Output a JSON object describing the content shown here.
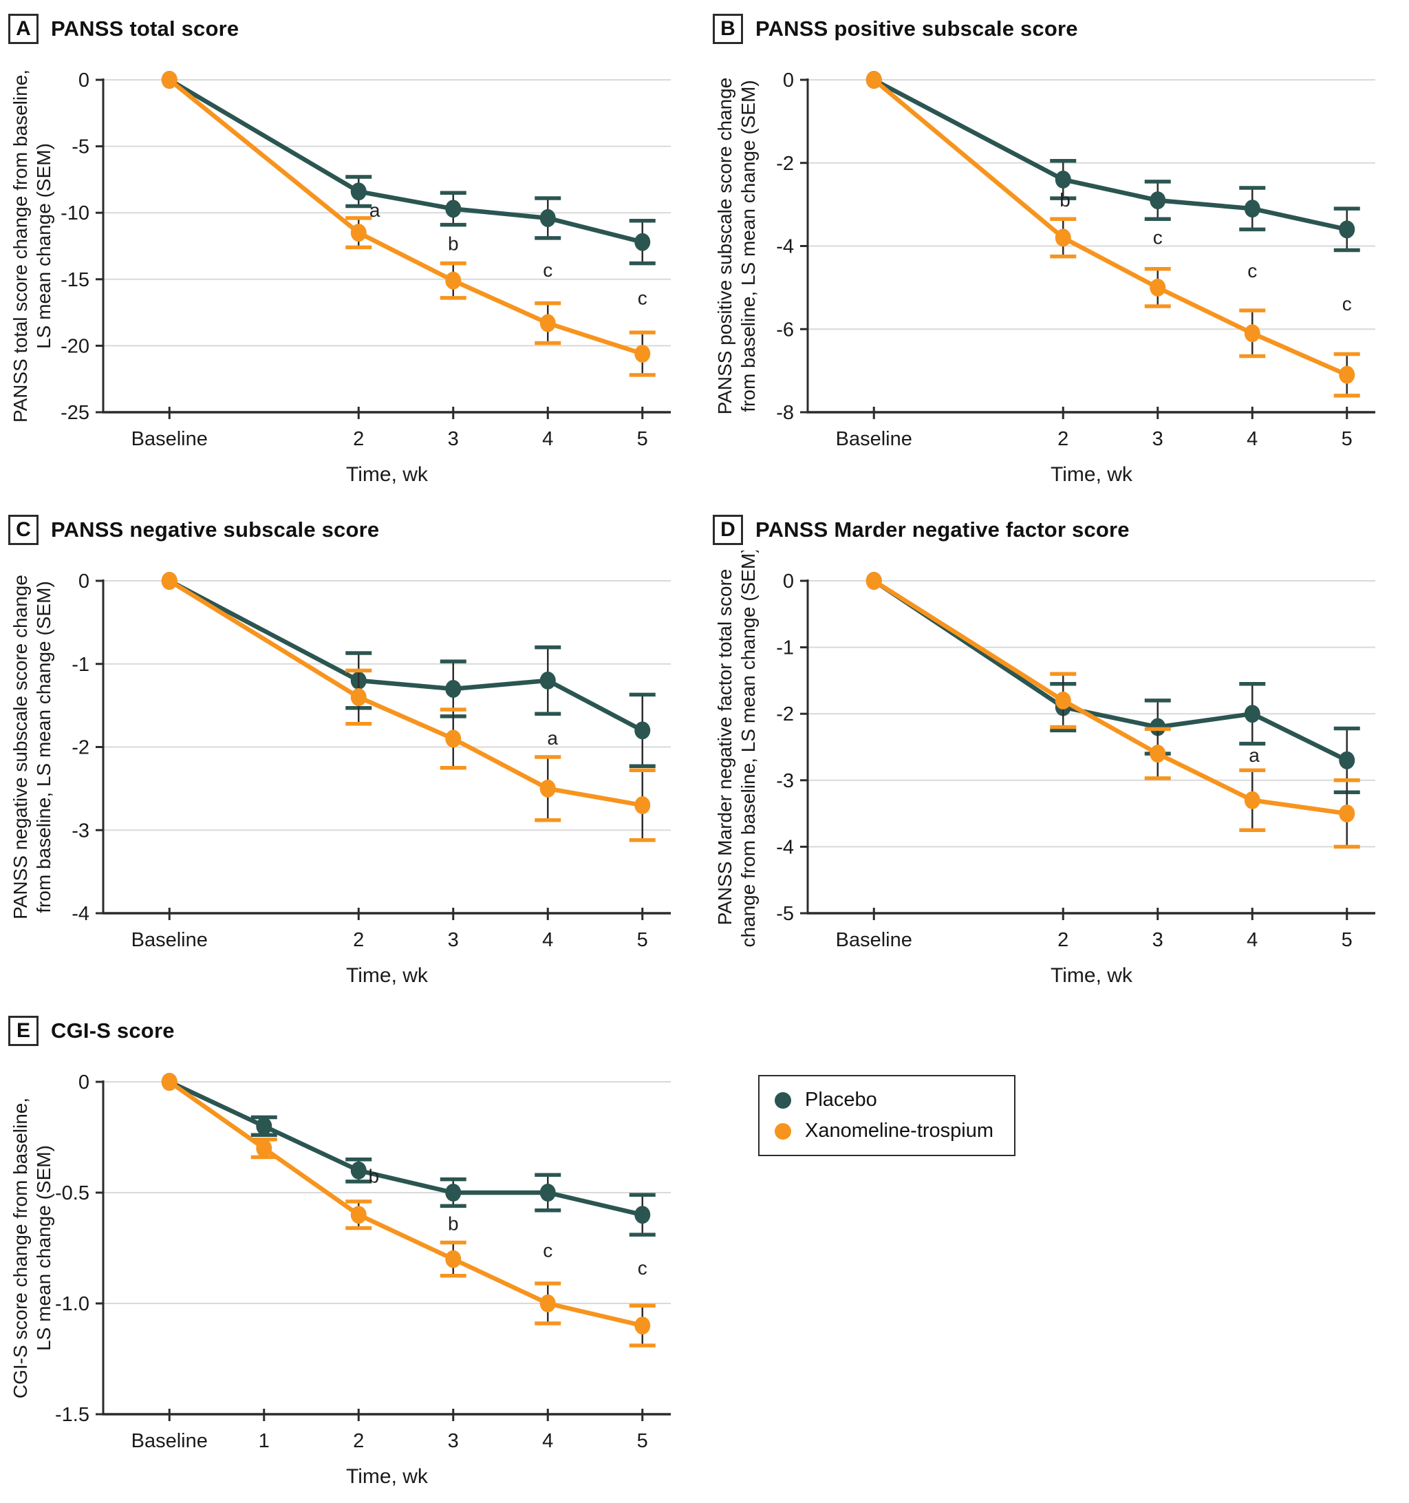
{
  "legend": {
    "items": [
      {
        "label": "Placebo",
        "color": "#2B5551"
      },
      {
        "label": "Xanomeline-trospium",
        "color": "#F7941E"
      }
    ]
  },
  "style": {
    "grid_color": "#D9D9D9",
    "axis_color": "#2B2B2B",
    "text_color": "#1A1A1A",
    "errorbar_stem_color": "#2E2E2E"
  },
  "chart_data": [
    {
      "type": "line",
      "label": "A",
      "title": "PANSS total score",
      "ylabel_lines": [
        "PANSS total score change from baseline,",
        "LS mean change (SEM)"
      ],
      "xlabel": "Time, wk",
      "xlim": [
        -0.7,
        5.3
      ],
      "ylim": [
        -25,
        0
      ],
      "grid": true,
      "yticks": [
        {
          "v": 0,
          "label": "0"
        },
        {
          "v": -5,
          "label": "-5"
        },
        {
          "v": -10,
          "label": "-10"
        },
        {
          "v": -15,
          "label": "-15"
        },
        {
          "v": -20,
          "label": "-20"
        },
        {
          "v": -25,
          "label": "-25"
        }
      ],
      "xticks": [
        {
          "v": 0,
          "label": "Baseline"
        },
        {
          "v": 2,
          "label": "2"
        },
        {
          "v": 3,
          "label": "3"
        },
        {
          "v": 4,
          "label": "4"
        },
        {
          "v": 5,
          "label": "5"
        }
      ],
      "series": [
        {
          "name": "Placebo",
          "color": "#2B5551",
          "x": [
            0,
            2,
            3,
            4,
            5
          ],
          "y": [
            0,
            -8.4,
            -9.7,
            -10.4,
            -12.2
          ],
          "sem": [
            0,
            1.1,
            1.2,
            1.5,
            1.6
          ]
        },
        {
          "name": "Xanomeline-trospium",
          "color": "#F7941E",
          "x": [
            0,
            2,
            3,
            4,
            5
          ],
          "y": [
            0,
            -11.5,
            -15.1,
            -18.3,
            -20.6
          ],
          "sem": [
            0,
            1.1,
            1.3,
            1.5,
            1.6
          ]
        }
      ],
      "annotations": [
        {
          "x": 2.17,
          "y": -10.3,
          "text": "a"
        },
        {
          "x": 3,
          "y": -12.8,
          "text": "b"
        },
        {
          "x": 4,
          "y": -14.8,
          "text": "c"
        },
        {
          "x": 5,
          "y": -16.9,
          "text": "c"
        }
      ]
    },
    {
      "type": "line",
      "label": "B",
      "title": "PANSS positive subscale score",
      "ylabel_lines": [
        "PANSS positive subscale score change",
        "from baseline, LS mean change (SEM)"
      ],
      "xlabel": "Time, wk",
      "xlim": [
        -0.7,
        5.3
      ],
      "ylim": [
        -8,
        0
      ],
      "grid": true,
      "yticks": [
        {
          "v": 0,
          "label": "0"
        },
        {
          "v": -2,
          "label": "-2"
        },
        {
          "v": -4,
          "label": "-4"
        },
        {
          "v": -6,
          "label": "-6"
        },
        {
          "v": -8,
          "label": "-8"
        }
      ],
      "xticks": [
        {
          "v": 0,
          "label": "Baseline"
        },
        {
          "v": 2,
          "label": "2"
        },
        {
          "v": 3,
          "label": "3"
        },
        {
          "v": 4,
          "label": "4"
        },
        {
          "v": 5,
          "label": "5"
        }
      ],
      "series": [
        {
          "name": "Placebo",
          "color": "#2B5551",
          "x": [
            0,
            2,
            3,
            4,
            5
          ],
          "y": [
            0,
            -2.4,
            -2.9,
            -3.1,
            -3.6
          ],
          "sem": [
            0,
            0.45,
            0.45,
            0.5,
            0.5
          ]
        },
        {
          "name": "Xanomeline-trospium",
          "color": "#F7941E",
          "x": [
            0,
            2,
            3,
            4,
            5
          ],
          "y": [
            0,
            -3.8,
            -5.0,
            -6.1,
            -7.1
          ],
          "sem": [
            0,
            0.45,
            0.45,
            0.55,
            0.5
          ]
        }
      ],
      "annotations": [
        {
          "x": 2.02,
          "y": -3.05,
          "text": "b"
        },
        {
          "x": 3,
          "y": -3.95,
          "text": "c"
        },
        {
          "x": 4,
          "y": -4.75,
          "text": "c"
        },
        {
          "x": 5,
          "y": -5.55,
          "text": "c"
        }
      ]
    },
    {
      "type": "line",
      "label": "C",
      "title": "PANSS negative subscale score",
      "ylabel_lines": [
        "PANSS negative subscale score change",
        "from baseline, LS mean change (SEM)"
      ],
      "xlabel": "Time, wk",
      "xlim": [
        -0.7,
        5.3
      ],
      "ylim": [
        -4,
        0
      ],
      "grid": true,
      "yticks": [
        {
          "v": 0,
          "label": "0"
        },
        {
          "v": -1,
          "label": "-1"
        },
        {
          "v": -2,
          "label": "-2"
        },
        {
          "v": -3,
          "label": "-3"
        },
        {
          "v": -4,
          "label": "-4"
        }
      ],
      "xticks": [
        {
          "v": 0,
          "label": "Baseline"
        },
        {
          "v": 2,
          "label": "2"
        },
        {
          "v": 3,
          "label": "3"
        },
        {
          "v": 4,
          "label": "4"
        },
        {
          "v": 5,
          "label": "5"
        }
      ],
      "series": [
        {
          "name": "Placebo",
          "color": "#2B5551",
          "x": [
            0,
            2,
            3,
            4,
            5
          ],
          "y": [
            0,
            -1.2,
            -1.3,
            -1.2,
            -1.8
          ],
          "sem": [
            0,
            0.33,
            0.33,
            0.4,
            0.43
          ]
        },
        {
          "name": "Xanomeline-trospium",
          "color": "#F7941E",
          "x": [
            0,
            2,
            3,
            4,
            5
          ],
          "y": [
            0,
            -1.4,
            -1.9,
            -2.5,
            -2.7
          ],
          "sem": [
            0,
            0.32,
            0.35,
            0.38,
            0.42
          ]
        }
      ],
      "annotations": [
        {
          "x": 4.05,
          "y": -1.97,
          "text": "a"
        }
      ]
    },
    {
      "type": "line",
      "label": "D",
      "title": "PANSS Marder negative factor score",
      "ylabel_lines": [
        "PANSS Marder negative factor total score",
        "change from baseline, LS mean change (SEM)"
      ],
      "xlabel": "Time, wk",
      "xlim": [
        -0.7,
        5.3
      ],
      "ylim": [
        -5,
        0
      ],
      "grid": true,
      "yticks": [
        {
          "v": 0,
          "label": "0"
        },
        {
          "v": -1,
          "label": "-1"
        },
        {
          "v": -2,
          "label": "-2"
        },
        {
          "v": -3,
          "label": "-3"
        },
        {
          "v": -4,
          "label": "-4"
        },
        {
          "v": -5,
          "label": "-5"
        }
      ],
      "xticks": [
        {
          "v": 0,
          "label": "Baseline"
        },
        {
          "v": 2,
          "label": "2"
        },
        {
          "v": 3,
          "label": "3"
        },
        {
          "v": 4,
          "label": "4"
        },
        {
          "v": 5,
          "label": "5"
        }
      ],
      "series": [
        {
          "name": "Placebo",
          "color": "#2B5551",
          "x": [
            0,
            2,
            3,
            4,
            5
          ],
          "y": [
            0,
            -1.9,
            -2.2,
            -2.0,
            -2.7
          ],
          "sem": [
            0,
            0.35,
            0.4,
            0.45,
            0.48
          ]
        },
        {
          "name": "Xanomeline-trospium",
          "color": "#F7941E",
          "x": [
            0,
            2,
            3,
            4,
            5
          ],
          "y": [
            0,
            -1.8,
            -2.6,
            -3.3,
            -3.5
          ],
          "sem": [
            0,
            0.4,
            0.37,
            0.45,
            0.5
          ]
        }
      ],
      "annotations": [
        {
          "x": 4.02,
          "y": -2.72,
          "text": "a"
        }
      ]
    },
    {
      "type": "line",
      "label": "E",
      "title": "CGI-S score",
      "ylabel_lines": [
        "CGI-S score change from baseline,",
        "LS mean change (SEM)"
      ],
      "xlabel": "Time, wk",
      "xlim": [
        -0.7,
        5.3
      ],
      "ylim": [
        -1.5,
        0
      ],
      "grid": true,
      "yticks": [
        {
          "v": 0,
          "label": "0"
        },
        {
          "v": -0.5,
          "label": "-0.5"
        },
        {
          "v": -1.0,
          "label": "-1.0"
        },
        {
          "v": -1.5,
          "label": "-1.5"
        }
      ],
      "xticks": [
        {
          "v": 0,
          "label": "Baseline"
        },
        {
          "v": 1,
          "label": "1"
        },
        {
          "v": 2,
          "label": "2"
        },
        {
          "v": 3,
          "label": "3"
        },
        {
          "v": 4,
          "label": "4"
        },
        {
          "v": 5,
          "label": "5"
        }
      ],
      "series": [
        {
          "name": "Placebo",
          "color": "#2B5551",
          "x": [
            0,
            1,
            2,
            3,
            4,
            5
          ],
          "y": [
            0,
            -0.2,
            -0.4,
            -0.5,
            -0.5,
            -0.6
          ],
          "sem": [
            0,
            0.04,
            0.05,
            0.06,
            0.08,
            0.09
          ]
        },
        {
          "name": "Xanomeline-trospium",
          "color": "#F7941E",
          "x": [
            0,
            1,
            2,
            3,
            4,
            5
          ],
          "y": [
            0,
            -0.3,
            -0.6,
            -0.8,
            -1.0,
            -1.1
          ],
          "sem": [
            0,
            0.04,
            0.06,
            0.075,
            0.09,
            0.09
          ]
        }
      ],
      "annotations": [
        {
          "x": 2.16,
          "y": -0.455,
          "text": "b"
        },
        {
          "x": 3,
          "y": -0.67,
          "text": "b"
        },
        {
          "x": 4,
          "y": -0.79,
          "text": "c"
        },
        {
          "x": 5,
          "y": -0.87,
          "text": "c"
        }
      ]
    }
  ]
}
